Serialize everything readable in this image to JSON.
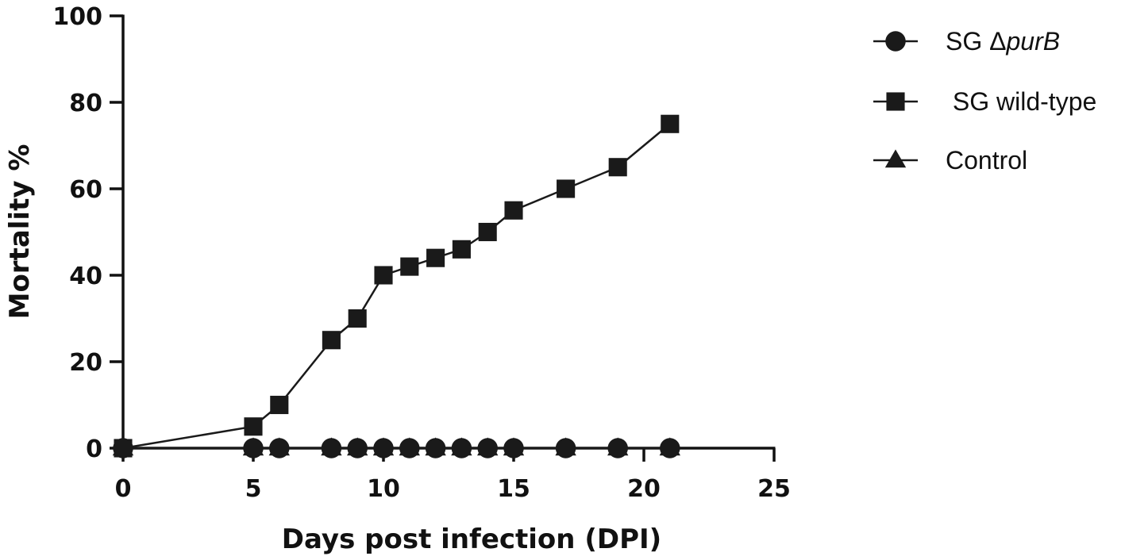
{
  "chart_data": {
    "type": "line",
    "title": "",
    "xlabel": "Days post infection (DPI)",
    "ylabel": "Mortality %",
    "xlim": [
      0,
      25
    ],
    "ylim": [
      0,
      100
    ],
    "xticks": [
      "0",
      "5",
      "10",
      "15",
      "20",
      "25"
    ],
    "yticks": [
      "0",
      "20",
      "40",
      "60",
      "80",
      "100"
    ],
    "grid": false,
    "legend_position": "top-right",
    "series": [
      {
        "name": "SG ΔpurB",
        "name_prefix": "SG Δ",
        "name_italic": "purB",
        "marker": "circle",
        "color": "#1a1a1a",
        "x": [
          0,
          5,
          6,
          8,
          9,
          10,
          11,
          12,
          13,
          14,
          15,
          17,
          19,
          21
        ],
        "y": [
          0,
          0,
          0,
          0,
          0,
          0,
          0,
          0,
          0,
          0,
          0,
          0,
          0,
          0
        ]
      },
      {
        "name": " SG wild-type",
        "marker": "square",
        "color": "#1a1a1a",
        "x": [
          0,
          5,
          6,
          8,
          9,
          10,
          11,
          12,
          13,
          14,
          15,
          17,
          19,
          21
        ],
        "y": [
          0,
          5,
          10,
          25,
          30,
          40,
          42,
          44,
          46,
          50,
          55,
          60,
          65,
          75
        ]
      },
      {
        "name": "Control",
        "marker": "triangle",
        "color": "#1a1a1a",
        "x": [
          0,
          5,
          6,
          8,
          9,
          10,
          11,
          12,
          13,
          14,
          15,
          17,
          19,
          21
        ],
        "y": [
          0,
          0,
          0,
          0,
          0,
          0,
          0,
          0,
          0,
          0,
          0,
          0,
          0,
          0
        ]
      }
    ]
  }
}
